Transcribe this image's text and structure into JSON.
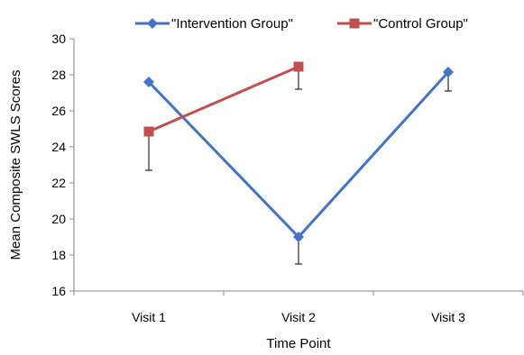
{
  "chart_data": {
    "type": "line",
    "title": "",
    "xlabel": "Time Point",
    "ylabel": "Mean Composite SWLS Scores",
    "categories": [
      "Visit 1",
      "Visit 2",
      "Visit 3"
    ],
    "ylim": [
      16,
      30
    ],
    "yticks": [
      16,
      18,
      20,
      22,
      24,
      26,
      28,
      30
    ],
    "grid": false,
    "legend_position": "top",
    "series": [
      {
        "name": "\"Intervention Group\"",
        "color": "#4472C4",
        "marker": "diamond",
        "values": [
          27.6,
          19.0,
          28.15
        ],
        "error_low": [
          27.6,
          17.5,
          27.1
        ],
        "error_high": [
          27.6,
          19.0,
          28.15
        ]
      },
      {
        "name": "\"Control Group\"",
        "color": "#C0504D",
        "marker": "square",
        "values": [
          24.85,
          28.45,
          null
        ],
        "error_low": [
          22.7,
          27.2,
          null
        ],
        "error_high": [
          24.85,
          28.45,
          null
        ]
      }
    ]
  }
}
